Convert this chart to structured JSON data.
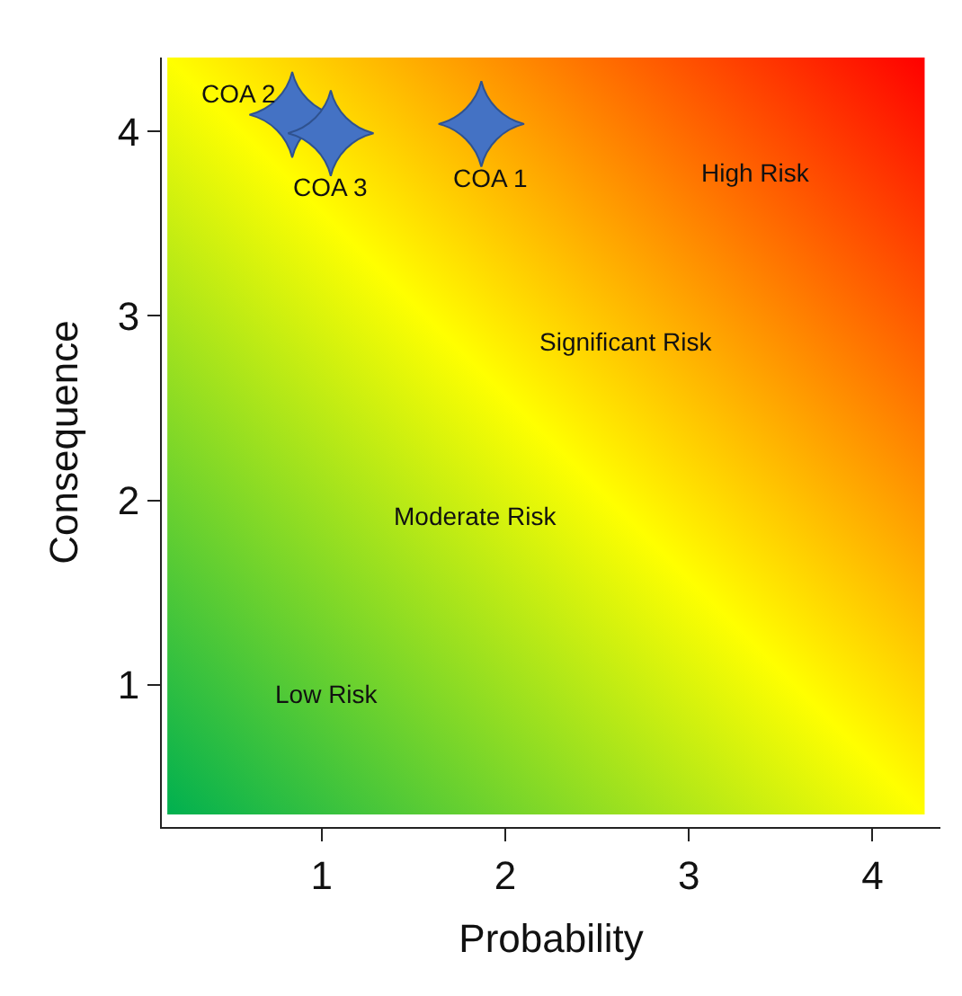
{
  "chart_data": {
    "type": "scatter",
    "xlabel": "Probability",
    "ylabel": "Consequence",
    "x": [
      1.87,
      0.84,
      1.05
    ],
    "series": [
      {
        "color": "#4472c4",
        "values": [
          4.04,
          4.09,
          3.99
        ]
      }
    ],
    "marker": "star",
    "xlim": [
      0.13,
      4.37
    ],
    "ylim": [
      0.23,
      4.4
    ],
    "xticks": [
      1,
      2,
      3,
      4
    ],
    "yticks": [
      1,
      2,
      3,
      4
    ],
    "grid": false,
    "legend": false,
    "annotations": [
      {
        "text": "COA 1",
        "x": 1.87,
        "y": 4.04
      },
      {
        "text": "COA 2",
        "x": 0.84,
        "y": 4.09
      },
      {
        "text": "COA 3",
        "x": 1.05,
        "y": 3.99
      },
      "High Risk",
      "Significant Risk",
      "Moderate Risk",
      "Low Risk"
    ]
  }
}
